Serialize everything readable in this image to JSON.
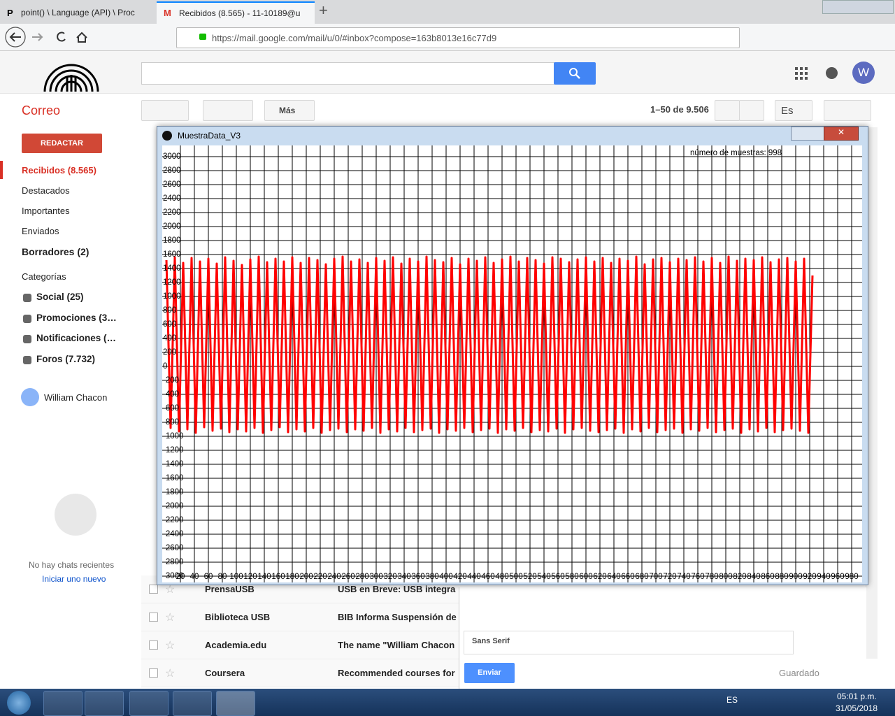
{
  "browser": {
    "tabs": [
      "point() \\ Language (API) \\ Proc",
      "Recibidos (8.565) - 11-10189@u"
    ],
    "url": "https://mail.google.com/mail/u/0/#inbox?compose=163b8013e16c77d9"
  },
  "gmail": {
    "app_label": "Correo",
    "compose_button": "REDACTAR",
    "more_button": "Más",
    "pagination": "1–50 de 9.506",
    "language": "Es",
    "avatar": "W",
    "folders": [
      "Recibidos (8.565)",
      "Destacados",
      "Importantes",
      "Enviados",
      "Borradores (2)"
    ],
    "categories_label": "Categorías",
    "categories": [
      "Social (25)",
      "Promociones (3…",
      "Notificaciones (…",
      "Foros (7.732)"
    ],
    "user": "William Chacon",
    "chat_empty": "No hay chats recientes",
    "chat_start": "Iniciar uno nuevo",
    "emails": [
      {
        "sender": "PrensaUSB",
        "subject": "USB en Breve: USB integra"
      },
      {
        "sender": "Biblioteca USB",
        "subject": "BIB Informa Suspensión de"
      },
      {
        "sender": "Academia.edu",
        "subject": "The name \"William Chacon"
      },
      {
        "sender": "Coursera",
        "subject": "Recommended courses for"
      }
    ],
    "compose": {
      "font": "Sans Serif",
      "send": "Enviar",
      "saved": "Guardado"
    }
  },
  "window": {
    "title": "MuestraData_V3"
  },
  "taskbar": {
    "language": "ES",
    "time": "05:01 p.m.",
    "date": "31/05/2018"
  },
  "chart_data": {
    "type": "line",
    "annotation": "número de muestras: 998",
    "xlim": [
      -6,
      995
    ],
    "ylim": [
      -3090,
      3160
    ],
    "grid": true,
    "xticks": [
      20,
      40,
      60,
      80,
      100,
      120,
      140,
      160,
      180,
      200,
      220,
      240,
      260,
      280,
      300,
      320,
      340,
      360,
      380,
      400,
      420,
      440,
      460,
      480,
      500,
      520,
      540,
      560,
      580,
      600,
      620,
      640,
      660,
      680,
      700,
      720,
      740,
      760,
      780,
      800,
      820,
      840,
      860,
      880,
      900,
      920,
      940,
      960,
      980
    ],
    "yticks": [
      3000,
      2800,
      2600,
      2400,
      2200,
      2000,
      1800,
      1600,
      1400,
      1200,
      1000,
      800,
      600,
      400,
      200,
      0,
      -200,
      -400,
      -600,
      -800,
      -1000,
      -1200,
      -1400,
      -1600,
      -1800,
      -2000,
      -2200,
      -2400,
      -2600,
      -2800,
      -3000
    ],
    "x": [
      0,
      6,
      12,
      18,
      24,
      30,
      36,
      42,
      48,
      54,
      60,
      66,
      72,
      78,
      84,
      90,
      96,
      102,
      108,
      114,
      120,
      126,
      132,
      138,
      144,
      150,
      156,
      162,
      168,
      174,
      180,
      186,
      192,
      198,
      204,
      210,
      216,
      222,
      228,
      234,
      240,
      246,
      252,
      258,
      264,
      270,
      276,
      282,
      288,
      294,
      300,
      306,
      312,
      318,
      324,
      330,
      336,
      342,
      348,
      354,
      360,
      366,
      372,
      378,
      384,
      390,
      396,
      402,
      408,
      414,
      420,
      426,
      432,
      438,
      444,
      450,
      456,
      462,
      468,
      474,
      480,
      486,
      492,
      498,
      504,
      510,
      516,
      522,
      528,
      534,
      540,
      546,
      552,
      558,
      564,
      570,
      576,
      582,
      588,
      594,
      600,
      606,
      612,
      618,
      624,
      630,
      636,
      642,
      648,
      654,
      660,
      666,
      672,
      678,
      684,
      690,
      696,
      702,
      708,
      714,
      720,
      726,
      732,
      738,
      744,
      750,
      756,
      762,
      768,
      774,
      780,
      786,
      792,
      798,
      804,
      810,
      816,
      822,
      828,
      834,
      840,
      846,
      852,
      858,
      864,
      870,
      876,
      882,
      888,
      894,
      900,
      906,
      912,
      918,
      924
    ],
    "series": [
      {
        "color": "#ff0000",
        "values": [
          1520,
          -880,
          1560,
          -930,
          1480,
          -900,
          1550,
          -950,
          1500,
          -870,
          1540,
          -920,
          1470,
          -890,
          1560,
          -940,
          1510,
          -900,
          1450,
          -930,
          1530,
          -880,
          1570,
          -950,
          1490,
          -910,
          1540,
          -870,
          1500,
          -940,
          1560,
          -900,
          1480,
          -930,
          1550,
          -880,
          1520,
          -950,
          1460,
          -910,
          1540,
          -890,
          1570,
          -940,
          1500,
          -900,
          1530,
          -920,
          1480,
          -880,
          1550,
          -950,
          1510,
          -900,
          1560,
          -930,
          1470,
          -880,
          1540,
          -940,
          1500,
          -910,
          1570,
          -890,
          1520,
          -950,
          1490,
          -900,
          1550,
          -920,
          1460,
          -880,
          1540,
          -940,
          1510,
          -910,
          1560,
          -890,
          1480,
          -950,
          1530,
          -900,
          1570,
          -920,
          1500,
          -880,
          1550,
          -940,
          1520,
          -910,
          1470,
          -930,
          1560,
          -890,
          1540,
          -950,
          1490,
          -900,
          1530,
          -880,
          1560,
          -920,
          1500,
          -940,
          1550,
          -910,
          1480,
          -890,
          1540,
          -950,
          1510,
          -900,
          1570,
          -930,
          1460,
          -880,
          1530,
          -940,
          1550,
          -910,
          1490,
          -890,
          1540,
          -950,
          1520,
          -900,
          1560,
          -920,
          1500,
          -880,
          1550,
          -940,
          1480,
          -910,
          1570,
          -890,
          1510,
          -950,
          1540,
          -900,
          1520,
          -930,
          1560,
          -880,
          1490,
          -940,
          1530,
          -910,
          1550,
          -890,
          1500,
          -920,
          1540,
          -950,
          1300
        ]
      }
    ]
  }
}
